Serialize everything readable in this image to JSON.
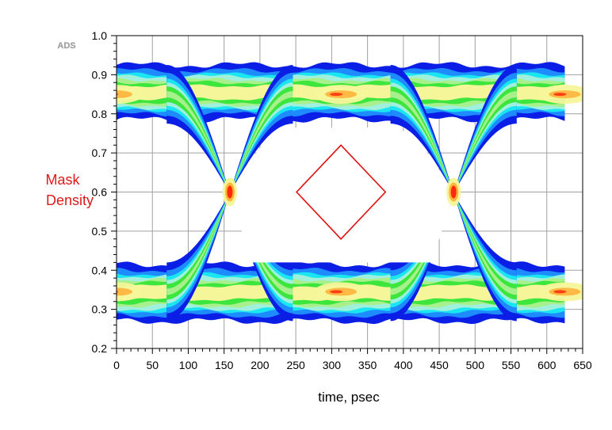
{
  "logo": {
    "text": "ADS"
  },
  "chart_data": {
    "type": "heatmap",
    "subtype": "eye-diagram-density",
    "xlabel": "time, psec",
    "ylabel_lines": [
      "Mask",
      "Density"
    ],
    "xlim": [
      0,
      650
    ],
    "ylim": [
      0.2,
      1.0
    ],
    "xticks": [
      0,
      50,
      100,
      150,
      200,
      250,
      300,
      350,
      400,
      450,
      500,
      550,
      600,
      650
    ],
    "yticks": [
      0.2,
      0.3,
      0.4,
      0.5,
      0.6,
      0.7,
      0.8,
      0.9,
      1.0
    ],
    "y_tick_labels": [
      "0.2",
      "0.3",
      "0.4",
      "0.5",
      "0.6",
      "0.7",
      "0.8",
      "0.9",
      "1.0"
    ],
    "x_tick_labels": [
      "0",
      "50",
      "100",
      "150",
      "200",
      "250",
      "300",
      "350",
      "400",
      "450",
      "500",
      "550",
      "600",
      "650"
    ],
    "grid": true,
    "data_x_extent": [
      0,
      625
    ],
    "levels": {
      "high": 0.85,
      "low": 0.345,
      "crossing": 0.6,
      "high_envelope": [
        0.785,
        0.925
      ],
      "low_envelope": [
        0.27,
        0.415
      ]
    },
    "crossings_x": [
      158,
      470
    ],
    "eye_centers_x": [
      0,
      313,
      625
    ],
    "mask": {
      "shape": "diamond",
      "points": [
        [
          313,
          0.72
        ],
        [
          375,
          0.6
        ],
        [
          313,
          0.48
        ],
        [
          251,
          0.6
        ]
      ],
      "color": "#e01010"
    },
    "colormap": [
      "#0a1ee6",
      "#1e8cff",
      "#19e6f0",
      "#9ff0dc",
      "#3de63d",
      "#a8f08c",
      "#f5f59a",
      "#ffb43c",
      "#ff2a0a"
    ],
    "colors": {
      "ylabel": "#dd1a1a",
      "grid": "#a0a0a0",
      "logo": "#a6a6a6"
    }
  }
}
